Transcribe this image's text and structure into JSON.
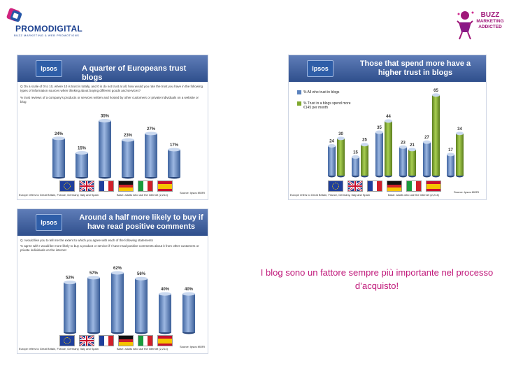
{
  "logos": {
    "left_name": "PROMODIGITAL",
    "left_tagline": "BUZZ MARKETING & WEB PROMOTIONS",
    "right_lines": [
      "BUZZ",
      "MARKETING",
      "ADDICTED"
    ]
  },
  "slide_caption": "I blog sono un fattore sempre più importante nel processo d’acquisto!",
  "panels": {
    "p1": {
      "brand": "Ipsos",
      "title": "A quarter of Europeans trust blogs",
      "question": "Q On a scale of 0 to 10, where 10 is trust is totally, and 0 is do not trust at all, how would you rate the trust you have in the following types of information sources when thinking about buying different goods and services?",
      "statement": "% trust reviews of a company's products or services written and hosted by other customers or private individuals on a website or blog",
      "footer_left": "Europe refers to Great Britain, France, Germany, Italy and Spain",
      "footer_base": "Base: adults who use the internet (2,214)",
      "footer_source": "Source: Ipsos MORI"
    },
    "p2": {
      "brand": "Ipsos",
      "title_lines": [
        "Those that spend more have a",
        "higher trust in blogs"
      ],
      "footer_left": "Europe refers to Great Britain, France, Germany, Italy and Spain",
      "footer_base": "Base: adults who use the internet (2,214)",
      "footer_source": "Source: Ipsos MORI"
    },
    "p3": {
      "brand": "Ipsos",
      "title_lines": [
        "Around a half more likely to buy if",
        "have read positive comments"
      ],
      "question": "Q I would like you to tell me the extent to which you agree with each of the following statements",
      "statement": "% agree with I would be more likely to buy a product or service if I have read positive comments about it from other customers or private individuals on the internet",
      "footer_left": "Europe refers to Great Britain, France, Germany, Italy and Spain",
      "footer_base": "Base: adults who use the internet (2,214)",
      "footer_source": "Source: Ipsos MORI"
    }
  },
  "flag_icons": [
    "eu-flag-icon",
    "uk-flag-icon",
    "france-flag-icon",
    "germany-flag-icon",
    "italy-flag-icon",
    "spain-flag-icon"
  ],
  "colors": {
    "bar_blue": "#5b82bd",
    "bar_green": "#7fa82e",
    "header_blue": "#3b5b9a",
    "caption": "#c0187a"
  },
  "chart_data": [
    {
      "type": "bar",
      "title": "A quarter of Europeans trust blogs",
      "categories": [
        "Europe",
        "Great Britain",
        "France",
        "Germany",
        "Italy",
        "Spain"
      ],
      "values": [
        24,
        15,
        35,
        23,
        27,
        17
      ],
      "value_labels": [
        "24%",
        "15%",
        "35%",
        "23%",
        "27%",
        "17%"
      ],
      "ylim": [
        0,
        40
      ]
    },
    {
      "type": "bar",
      "title": "Those that spend more have a higher trust in blogs",
      "categories": [
        "Europe",
        "Great Britain",
        "France",
        "Germany",
        "Italy",
        "Spain"
      ],
      "series": [
        {
          "name": "% All who trust in blogs",
          "values": [
            24,
            15,
            35,
            23,
            27,
            17
          ]
        },
        {
          "name": "% Trust in a blogs spend more €145 per month",
          "values": [
            30,
            25,
            44,
            21,
            65,
            34
          ]
        }
      ],
      "legend": "top-left",
      "ylim": [
        0,
        70
      ]
    },
    {
      "type": "bar",
      "title": "Around a half more likely to buy if have read positive comments",
      "categories": [
        "Europe",
        "Great Britain",
        "France",
        "Germany",
        "Italy",
        "Spain"
      ],
      "values": [
        52,
        57,
        62,
        56,
        40,
        40
      ],
      "value_labels": [
        "52%",
        "57%",
        "62%",
        "56%",
        "40%",
        "40%"
      ],
      "ylim": [
        0,
        70
      ]
    }
  ]
}
